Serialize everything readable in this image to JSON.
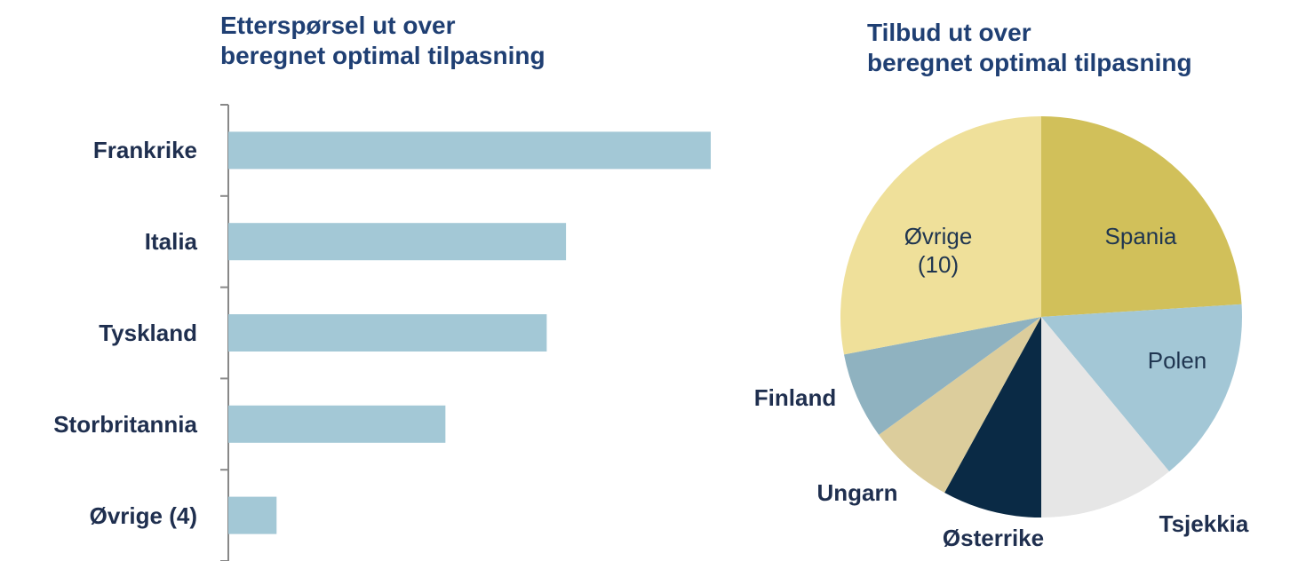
{
  "chart_data": [
    {
      "type": "bar",
      "orientation": "horizontal",
      "title": "Etterspørsel ut over\nberegnet optimal tilpasning",
      "categories": [
        "Frankrike",
        "Italia",
        "Tyskland",
        "Storbritannia",
        "Øvrige (4)"
      ],
      "values": [
        100,
        70,
        66,
        45,
        10
      ],
      "color": "#a3c8d6",
      "xlim": [
        0,
        100
      ]
    },
    {
      "type": "pie",
      "title": "Tilbud ut over\nberegnet optimal tilpasning",
      "categories": [
        "Spania",
        "Polen",
        "Tsjekkia",
        "Østerrike",
        "Ungarn",
        "Finland",
        "Øvrige\n(10)"
      ],
      "values": [
        24,
        15,
        11,
        8,
        7,
        7,
        28
      ],
      "colors": [
        "#d1c05a",
        "#a3c7d6",
        "#e6e6e6",
        "#0a2a45",
        "#dccd9c",
        "#8fb2c0",
        "#efe09a"
      ]
    }
  ]
}
